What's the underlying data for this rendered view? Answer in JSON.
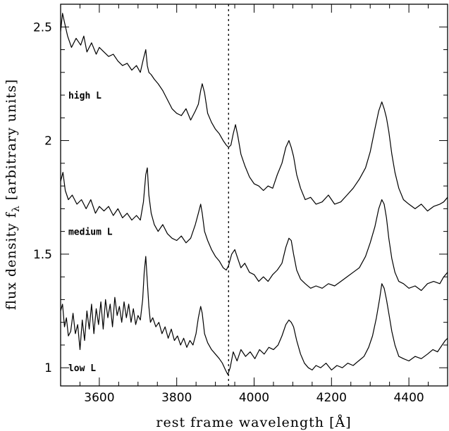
{
  "chart_data": {
    "type": "line",
    "title": "",
    "xlabel": "rest frame wavelength [Å]",
    "ylabel_main": "flux density f",
    "ylabel_sub": "λ",
    "ylabel_tail": " [arbitrary units]",
    "xlim": [
      3500,
      4500
    ],
    "ylim": [
      0.92,
      2.6
    ],
    "x_ticks": [
      3600,
      3800,
      4000,
      4200,
      4400
    ],
    "x_tick_labels": [
      "3600",
      "3800",
      "4000",
      "4200",
      "4400"
    ],
    "y_ticks": [
      1,
      1.5,
      2,
      2.5
    ],
    "y_tick_labels": [
      "1",
      "1.5",
      "2",
      "2.5"
    ],
    "x_minor_step": 50,
    "y_minor_step": 0.1,
    "vline_x": 3934,
    "grid": false,
    "series": [
      {
        "name": "high L",
        "label_at": [
          3520,
          2.2
        ],
        "x": [
          3500,
          3505,
          3510,
          3518,
          3528,
          3540,
          3552,
          3560,
          3568,
          3580,
          3592,
          3600,
          3612,
          3624,
          3636,
          3648,
          3660,
          3672,
          3684,
          3696,
          3706,
          3714,
          3720,
          3724,
          3728,
          3734,
          3742,
          3752,
          3764,
          3776,
          3788,
          3800,
          3812,
          3824,
          3836,
          3848,
          3856,
          3862,
          3866,
          3872,
          3880,
          3890,
          3900,
          3910,
          3920,
          3928,
          3934,
          3940,
          3946,
          3952,
          3958,
          3966,
          3976,
          3988,
          4000,
          4012,
          4024,
          4036,
          4048,
          4060,
          4072,
          4082,
          4090,
          4096,
          4102,
          4110,
          4120,
          4132,
          4146,
          4160,
          4176,
          4192,
          4208,
          4224,
          4240,
          4256,
          4272,
          4288,
          4300,
          4312,
          4322,
          4330,
          4336,
          4342,
          4348,
          4356,
          4364,
          4374,
          4386,
          4400,
          4416,
          4432,
          4448,
          4464,
          4480,
          4490,
          4500
        ],
        "y": [
          2.48,
          2.56,
          2.52,
          2.46,
          2.41,
          2.45,
          2.42,
          2.46,
          2.39,
          2.43,
          2.38,
          2.41,
          2.39,
          2.37,
          2.38,
          2.35,
          2.33,
          2.34,
          2.31,
          2.33,
          2.3,
          2.36,
          2.4,
          2.33,
          2.3,
          2.29,
          2.27,
          2.25,
          2.22,
          2.18,
          2.14,
          2.12,
          2.11,
          2.14,
          2.09,
          2.13,
          2.16,
          2.22,
          2.25,
          2.21,
          2.12,
          2.08,
          2.05,
          2.03,
          2.0,
          1.98,
          1.97,
          1.98,
          2.03,
          2.07,
          2.02,
          1.94,
          1.89,
          1.84,
          1.81,
          1.8,
          1.78,
          1.8,
          1.79,
          1.85,
          1.9,
          1.97,
          2.0,
          1.97,
          1.93,
          1.85,
          1.79,
          1.74,
          1.75,
          1.72,
          1.73,
          1.76,
          1.72,
          1.73,
          1.76,
          1.79,
          1.83,
          1.88,
          1.95,
          2.05,
          2.13,
          2.17,
          2.14,
          2.1,
          2.04,
          1.94,
          1.86,
          1.79,
          1.74,
          1.72,
          1.7,
          1.72,
          1.69,
          1.71,
          1.72,
          1.73,
          1.75
        ]
      },
      {
        "name": "medium L",
        "label_at": [
          3520,
          1.6
        ],
        "x": [
          3500,
          3506,
          3512,
          3520,
          3530,
          3542,
          3554,
          3566,
          3578,
          3590,
          3600,
          3612,
          3624,
          3636,
          3648,
          3660,
          3672,
          3684,
          3696,
          3706,
          3714,
          3720,
          3724,
          3728,
          3734,
          3742,
          3752,
          3764,
          3776,
          3788,
          3800,
          3812,
          3824,
          3836,
          3848,
          3856,
          3862,
          3866,
          3872,
          3880,
          3890,
          3900,
          3910,
          3920,
          3928,
          3934,
          3942,
          3950,
          3958,
          3966,
          3976,
          3988,
          4000,
          4012,
          4024,
          4036,
          4048,
          4060,
          4072,
          4082,
          4090,
          4096,
          4102,
          4110,
          4120,
          4132,
          4146,
          4160,
          4176,
          4192,
          4208,
          4224,
          4240,
          4256,
          4272,
          4288,
          4300,
          4312,
          4322,
          4330,
          4336,
          4342,
          4348,
          4356,
          4364,
          4374,
          4386,
          4400,
          4416,
          4432,
          4448,
          4464,
          4480,
          4490,
          4500
        ],
        "y": [
          1.82,
          1.86,
          1.78,
          1.74,
          1.76,
          1.72,
          1.74,
          1.7,
          1.74,
          1.68,
          1.71,
          1.69,
          1.71,
          1.67,
          1.7,
          1.66,
          1.68,
          1.65,
          1.67,
          1.65,
          1.73,
          1.85,
          1.88,
          1.76,
          1.68,
          1.63,
          1.6,
          1.63,
          1.59,
          1.57,
          1.56,
          1.58,
          1.55,
          1.57,
          1.63,
          1.68,
          1.72,
          1.68,
          1.6,
          1.56,
          1.52,
          1.49,
          1.47,
          1.44,
          1.43,
          1.45,
          1.5,
          1.52,
          1.48,
          1.44,
          1.46,
          1.42,
          1.41,
          1.38,
          1.4,
          1.38,
          1.41,
          1.43,
          1.46,
          1.53,
          1.57,
          1.56,
          1.5,
          1.43,
          1.39,
          1.37,
          1.35,
          1.36,
          1.35,
          1.37,
          1.36,
          1.38,
          1.4,
          1.42,
          1.44,
          1.49,
          1.55,
          1.62,
          1.7,
          1.74,
          1.72,
          1.66,
          1.57,
          1.48,
          1.42,
          1.38,
          1.37,
          1.35,
          1.36,
          1.34,
          1.37,
          1.38,
          1.37,
          1.4,
          1.42
        ]
      },
      {
        "name": "low L",
        "label_at": [
          3520,
          1.0
        ],
        "x": [
          3500,
          3505,
          3510,
          3515,
          3520,
          3526,
          3532,
          3538,
          3544,
          3550,
          3556,
          3562,
          3568,
          3574,
          3580,
          3586,
          3592,
          3598,
          3604,
          3610,
          3616,
          3622,
          3628,
          3634,
          3640,
          3646,
          3652,
          3658,
          3664,
          3670,
          3676,
          3682,
          3688,
          3694,
          3700,
          3706,
          3712,
          3716,
          3720,
          3724,
          3728,
          3732,
          3738,
          3746,
          3754,
          3762,
          3770,
          3778,
          3786,
          3794,
          3802,
          3810,
          3818,
          3826,
          3834,
          3842,
          3850,
          3856,
          3862,
          3866,
          3872,
          3880,
          3890,
          3900,
          3910,
          3918,
          3926,
          3932,
          3938,
          3946,
          3956,
          3966,
          3978,
          3990,
          4002,
          4014,
          4026,
          4038,
          4050,
          4062,
          4072,
          4082,
          4090,
          4096,
          4102,
          4110,
          4120,
          4130,
          4140,
          4150,
          4160,
          4172,
          4186,
          4200,
          4214,
          4228,
          4242,
          4256,
          4270,
          4284,
          4296,
          4306,
          4316,
          4324,
          4330,
          4336,
          4342,
          4348,
          4356,
          4364,
          4374,
          4386,
          4400,
          4416,
          4432,
          4448,
          4462,
          4474,
          4486,
          4494,
          4500
        ],
        "y": [
          1.25,
          1.28,
          1.18,
          1.22,
          1.14,
          1.16,
          1.24,
          1.15,
          1.19,
          1.08,
          1.21,
          1.12,
          1.25,
          1.17,
          1.28,
          1.15,
          1.26,
          1.19,
          1.29,
          1.17,
          1.3,
          1.22,
          1.28,
          1.18,
          1.31,
          1.23,
          1.27,
          1.2,
          1.29,
          1.22,
          1.28,
          1.2,
          1.26,
          1.19,
          1.23,
          1.21,
          1.3,
          1.42,
          1.49,
          1.38,
          1.27,
          1.2,
          1.22,
          1.18,
          1.2,
          1.15,
          1.18,
          1.13,
          1.17,
          1.12,
          1.14,
          1.1,
          1.13,
          1.09,
          1.12,
          1.1,
          1.15,
          1.22,
          1.27,
          1.24,
          1.15,
          1.11,
          1.08,
          1.06,
          1.04,
          1.02,
          0.99,
          0.97,
          1.0,
          1.07,
          1.03,
          1.08,
          1.05,
          1.07,
          1.04,
          1.08,
          1.06,
          1.09,
          1.08,
          1.1,
          1.14,
          1.19,
          1.21,
          1.2,
          1.18,
          1.12,
          1.06,
          1.02,
          1.0,
          0.99,
          1.01,
          1.0,
          1.02,
          0.99,
          1.01,
          1.0,
          1.02,
          1.01,
          1.03,
          1.05,
          1.09,
          1.14,
          1.22,
          1.3,
          1.37,
          1.35,
          1.3,
          1.24,
          1.16,
          1.1,
          1.05,
          1.04,
          1.03,
          1.05,
          1.04,
          1.06,
          1.08,
          1.07,
          1.1,
          1.12,
          1.13
        ]
      }
    ]
  }
}
